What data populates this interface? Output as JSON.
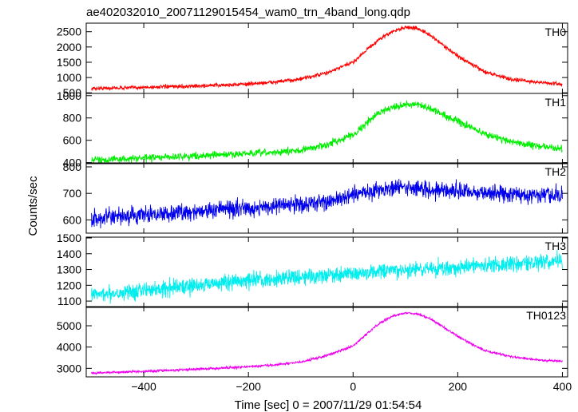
{
  "chart_data": {
    "type": "line",
    "title": "ae402032010_20071129015454_wam0_trn_4band_long.qdp",
    "xlabel": "Time [sec] 0 = 2007/11/29 01:54:54",
    "ylabel": "Counts/sec",
    "xlim": [
      -510,
      410
    ],
    "x_ticks": [
      -400,
      -200,
      0,
      200,
      400
    ],
    "x_tick_labels": [
      "−400",
      "−200",
      "0",
      "200",
      "400"
    ],
    "grid": false,
    "legend": "none",
    "x": [
      -500,
      -450,
      -400,
      -350,
      -300,
      -250,
      -200,
      -150,
      -100,
      -50,
      0,
      25,
      50,
      75,
      100,
      125,
      150,
      200,
      250,
      300,
      350,
      400
    ],
    "panels": [
      {
        "label": "TH0",
        "color": "#ff0000",
        "ylim": [
          480,
          2780
        ],
        "yticks": [
          500,
          1000,
          1500,
          2000,
          2500
        ],
        "noise": 45,
        "values": [
          640,
          660,
          680,
          700,
          720,
          750,
          790,
          850,
          950,
          1150,
          1500,
          1900,
          2250,
          2500,
          2650,
          2600,
          2350,
          1700,
          1200,
          950,
          850,
          780
        ]
      },
      {
        "label": "TH1",
        "color": "#00ee00",
        "ylim": [
          390,
          1020
        ],
        "yticks": [
          400,
          600,
          800,
          1000
        ],
        "noise": 22,
        "values": [
          425,
          430,
          440,
          450,
          460,
          470,
          480,
          490,
          510,
          560,
          650,
          750,
          850,
          900,
          920,
          915,
          880,
          770,
          660,
          590,
          550,
          520
        ]
      },
      {
        "label": "TH2",
        "color": "#0000ee",
        "ylim": [
          550,
          815
        ],
        "yticks": [
          600,
          700,
          800
        ],
        "noise": 22,
        "values": [
          605,
          610,
          618,
          625,
          632,
          640,
          645,
          652,
          660,
          668,
          690,
          705,
          715,
          720,
          722,
          718,
          715,
          708,
          702,
          698,
          692,
          690
        ]
      },
      {
        "label": "TH3",
        "color": "#00eeee",
        "ylim": [
          1060,
          1505
        ],
        "yticks": [
          1100,
          1200,
          1300,
          1400,
          1500
        ],
        "noise": 35,
        "values": [
          1140,
          1155,
          1170,
          1185,
          1200,
          1215,
          1228,
          1242,
          1255,
          1265,
          1275,
          1280,
          1285,
          1290,
          1295,
          1300,
          1305,
          1315,
          1325,
          1335,
          1345,
          1355
        ]
      },
      {
        "label": "TH0123",
        "color": "#ee00ee",
        "ylim": [
          2600,
          5900
        ],
        "yticks": [
          3000,
          4000,
          5000
        ],
        "noise": 40,
        "values": [
          2780,
          2820,
          2860,
          2910,
          2960,
          3020,
          3080,
          3160,
          3300,
          3600,
          4050,
          4600,
          5100,
          5450,
          5600,
          5550,
          5300,
          4500,
          3850,
          3550,
          3400,
          3330
        ]
      }
    ]
  }
}
